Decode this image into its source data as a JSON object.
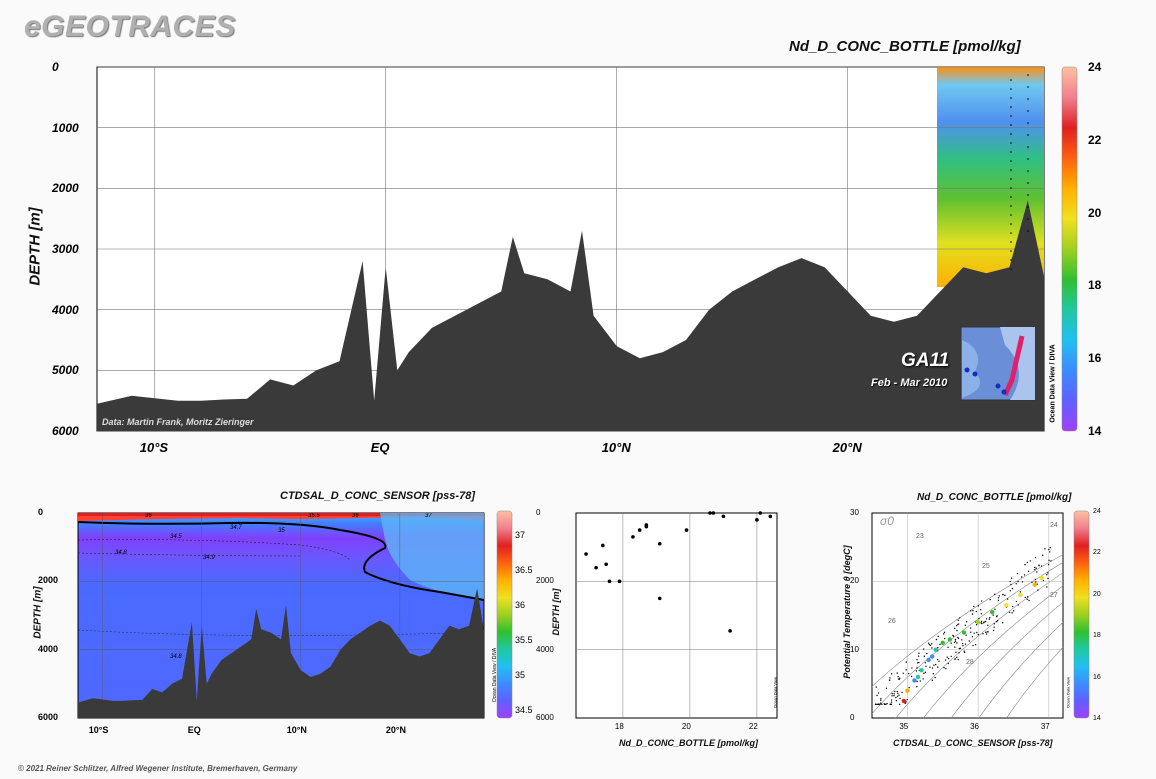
{
  "logo": "eGEOTRACES",
  "footer": "© 2021 Reiner Schlitzer, Alfred Wegener Institute, Bremerhaven, Germany",
  "colormap": [
    "#a040ff",
    "#6060ff",
    "#3c8cff",
    "#20c0f0",
    "#20c8a0",
    "#30c030",
    "#a0d020",
    "#f0e020",
    "#ffb000",
    "#ff6010",
    "#e02020",
    "#f08090",
    "#ffc0a0"
  ],
  "main_panel": {
    "title": "Nd_D_CONC_BOTTLE [pmol/kg]",
    "ylabel": "DEPTH [m]",
    "yticks": [
      "0",
      "1000",
      "2000",
      "3000",
      "4000",
      "5000",
      "6000"
    ],
    "xticks": [
      "10°S",
      "EQ",
      "10°N",
      "20°N"
    ],
    "credit": "Data: Martin Frank, Moritz Zieringer",
    "section": "GA11",
    "dates": "Feb - Mar 2010",
    "odv": "Ocean Data View / DIVA",
    "colorbar_ticks": [
      "24",
      "22",
      "20",
      "18",
      "16",
      "14"
    ]
  },
  "sal_panel": {
    "title": "CTDSAL_D_CONC_SENSOR [pss-78]",
    "ylabel": "DEPTH [m]",
    "yticks": [
      "0",
      "2000",
      "4000",
      "6000"
    ],
    "xticks": [
      "10°S",
      "EQ",
      "10°N",
      "20°N"
    ],
    "contour_labels": [
      "36",
      "34.7",
      "35",
      "34.5",
      "34.8",
      "34.9",
      "34.8",
      "36",
      "37",
      "35.5"
    ],
    "odv": "Ocean Data View / DIVA",
    "colorbar_ticks": [
      "37",
      "36.5",
      "36",
      "35.5",
      "35",
      "34.5"
    ]
  },
  "scatter_panel": {
    "ylabel": "DEPTH [m]",
    "xlabel": "Nd_D_CONC_BOTTLE [pmol/kg]",
    "yticks": [
      "0",
      "2000",
      "4000",
      "6000"
    ],
    "xticks": [
      "18",
      "20",
      "22"
    ],
    "odv": "Ocean Data View"
  },
  "ts_panel": {
    "title": "Nd_D_CONC_BOTTLE [pmol/kg]",
    "ylabel": "Potential Temperature θ [degC]",
    "xlabel": "CTDSAL_D_CONC_SENSOR [pss-78]",
    "yticks": [
      "0",
      "10",
      "20",
      "30"
    ],
    "xticks": [
      "35",
      "36",
      "37"
    ],
    "sigma": "σ0",
    "isopycnal_labels": [
      "23",
      "24",
      "25",
      "26",
      "27",
      "28"
    ],
    "odv": "Ocean Data View",
    "colorbar_ticks": [
      "24",
      "22",
      "20",
      "18",
      "16",
      "14"
    ]
  },
  "chart_data": [
    {
      "type": "heatmap",
      "title": "Nd_D_CONC_BOTTLE [pmol/kg]",
      "ylabel": "DEPTH [m]",
      "xlim": [
        -12.5,
        28.5
      ],
      "ylim": [
        6000,
        0
      ],
      "xticks": [
        "10°S",
        "EQ",
        "10°N",
        "20°N"
      ],
      "colorbar_range": [
        14,
        24
      ],
      "filled_region_lat": [
        24.8,
        28.5
      ],
      "bathymetry": [
        [
          -12.5,
          5550
        ],
        [
          -11,
          5420
        ],
        [
          -10,
          5460
        ],
        [
          -9,
          5500
        ],
        [
          -8,
          5500
        ],
        [
          -7,
          5480
        ],
        [
          -6,
          5470
        ],
        [
          -5,
          5150
        ],
        [
          -4,
          5250
        ],
        [
          -3,
          5000
        ],
        [
          -2,
          4850
        ],
        [
          -1,
          3200
        ],
        [
          -0.5,
          5500
        ],
        [
          0,
          3300
        ],
        [
          0.5,
          5000
        ],
        [
          1,
          4700
        ],
        [
          2,
          4300
        ],
        [
          3,
          4100
        ],
        [
          4,
          3900
        ],
        [
          5,
          3700
        ],
        [
          5.5,
          2800
        ],
        [
          6,
          3400
        ],
        [
          7,
          3500
        ],
        [
          8,
          3700
        ],
        [
          8.5,
          2700
        ],
        [
          9,
          4100
        ],
        [
          10,
          4600
        ],
        [
          11,
          4800
        ],
        [
          12,
          4700
        ],
        [
          13,
          4500
        ],
        [
          14,
          4000
        ],
        [
          15,
          3700
        ],
        [
          16,
          3500
        ],
        [
          17,
          3300
        ],
        [
          18,
          3150
        ],
        [
          19,
          3300
        ],
        [
          20,
          3700
        ],
        [
          21,
          4100
        ],
        [
          22,
          4200
        ],
        [
          23,
          4100
        ],
        [
          24,
          3700
        ],
        [
          25,
          3300
        ],
        [
          26,
          3400
        ],
        [
          27,
          3300
        ],
        [
          27.8,
          2200
        ],
        [
          28.5,
          3450
        ]
      ]
    },
    {
      "type": "heatmap",
      "title": "CTDSAL_D_CONC_SENSOR [pss-78]",
      "ylabel": "DEPTH [m]",
      "xlim": [
        -12.5,
        28.5
      ],
      "ylim": [
        6000,
        0
      ],
      "colorbar_range": [
        34.4,
        37.4
      ]
    },
    {
      "type": "scatter",
      "xlabel": "Nd_D_CONC_BOTTLE [pmol/kg]",
      "ylabel": "DEPTH [m]",
      "xlim": [
        16.6,
        22.6
      ],
      "ylim": [
        6000,
        0
      ],
      "x": [
        16.9,
        17.2,
        17.4,
        17.5,
        17.6,
        17.9,
        18.3,
        18.5,
        18.7,
        18.7,
        19.1,
        19.1,
        19.9,
        20.6,
        20.7,
        21.0,
        22.0,
        22.1,
        22.4,
        21.2
      ],
      "y": [
        1200,
        1600,
        950,
        1500,
        2000,
        2000,
        700,
        500,
        350,
        400,
        900,
        2500,
        500,
        0,
        0,
        100,
        200,
        0,
        100,
        3450
      ]
    },
    {
      "type": "scatter",
      "title": "Nd_D_CONC_BOTTLE [pmol/kg]",
      "xlabel": "CTDSAL_D_CONC_SENSOR [pss-78]",
      "ylabel": "Potential Temperature θ [degC]",
      "xlim": [
        34.5,
        37.2
      ],
      "ylim": [
        0,
        30
      ],
      "x": [
        34.95,
        35.0,
        35.1,
        35.2,
        35.3,
        35.4,
        35.6,
        35.8,
        36.0,
        36.2,
        36.4,
        36.6,
        36.8,
        36.9,
        35.15,
        35.35,
        35.5
      ],
      "y": [
        2.5,
        4.0,
        5.5,
        7.0,
        8.5,
        10.0,
        11.5,
        12.5,
        14.0,
        15.5,
        16.5,
        18.0,
        19.5,
        20.5,
        6.0,
        9.0,
        11.0
      ],
      "values": [
        22,
        21,
        16,
        17,
        16,
        17,
        18,
        18,
        19,
        18,
        20,
        20,
        21,
        20,
        17,
        16,
        18
      ]
    }
  ]
}
